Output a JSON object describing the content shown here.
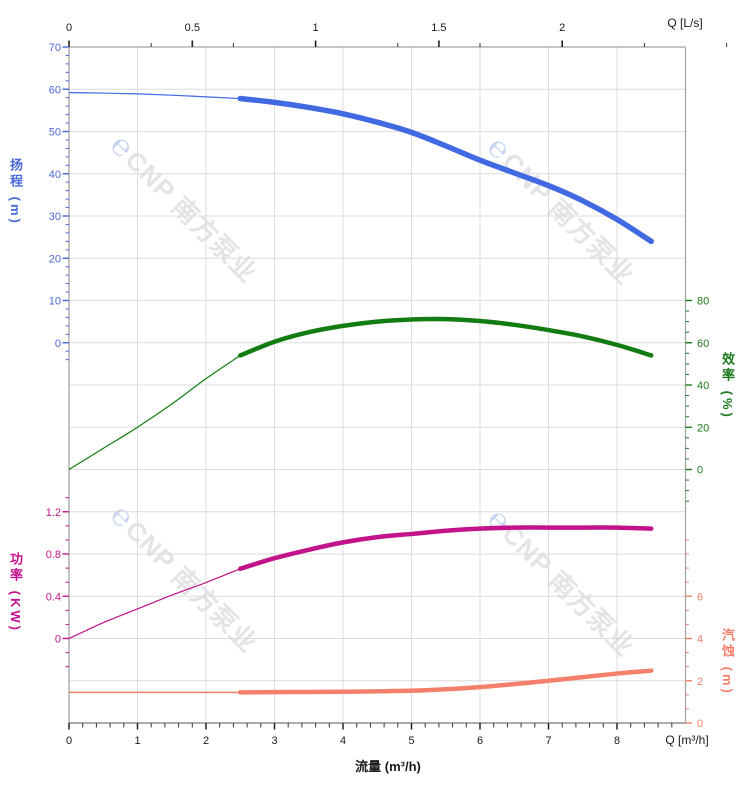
{
  "watermark": {
    "logo": "℮",
    "text": "CNP 南方泵业"
  },
  "chart_data": {
    "type": "line",
    "title": "",
    "x_m3h": [
      0,
      0.5,
      1,
      1.5,
      2,
      2.5,
      3,
      3.5,
      4,
      4.5,
      5,
      5.5,
      6,
      6.5,
      7,
      7.5,
      8,
      8.5
    ],
    "series": [
      {
        "name": "head",
        "label": "扬程 (m)",
        "unit": "m",
        "color": "#4169e1",
        "label_color": "#4a68d9",
        "rated_from": 2.5,
        "values": [
          59.2,
          59.1,
          58.9,
          58.6,
          58.2,
          57.8,
          56.9,
          55.7,
          54.2,
          52.2,
          49.8,
          46.6,
          43.2,
          40.2,
          37.2,
          33.6,
          29.2,
          24.0
        ]
      },
      {
        "name": "efficiency",
        "label": "效率 (%)",
        "unit": "%",
        "color": "#127c12",
        "label_color": "#1b7a1b",
        "rated_from": 2.5,
        "values": [
          0,
          10,
          20,
          31,
          43,
          54,
          60.5,
          65,
          68,
          70,
          71,
          71.2,
          70.3,
          68.5,
          66,
          63,
          59,
          54
        ]
      },
      {
        "name": "power",
        "label": "功率 (KW)",
        "unit": "KW",
        "color": "#c2138a",
        "label_color": "#c4138c",
        "rated_from": 2.5,
        "values": [
          0,
          0.15,
          0.28,
          0.41,
          0.53,
          0.66,
          0.76,
          0.84,
          0.91,
          0.96,
          0.99,
          1.02,
          1.04,
          1.05,
          1.05,
          1.05,
          1.05,
          1.04
        ]
      },
      {
        "name": "npsh",
        "label": "汽蚀 (m)",
        "unit": "m",
        "color": "#f4806b",
        "label_color": "#f4806b",
        "rated_from": 2.5,
        "values": [
          1.45,
          1.45,
          1.45,
          1.45,
          1.45,
          1.45,
          1.46,
          1.47,
          1.48,
          1.5,
          1.53,
          1.6,
          1.7,
          1.84,
          2.0,
          2.17,
          2.34,
          2.48
        ]
      }
    ],
    "axes": {
      "x_bottom": {
        "title": "流量 (m³/h)",
        "unit": "Q [m³/h]",
        "ticks": [
          0,
          1,
          2,
          3,
          4,
          5,
          6,
          7,
          8
        ],
        "range": [
          0,
          9
        ]
      },
      "x_top": {
        "unit": "Q [L/s]",
        "ticks": [
          0,
          0.5,
          1,
          1.5,
          2
        ],
        "range": [
          0,
          2.5
        ]
      },
      "y_head": {
        "ticks": [
          70,
          60,
          50,
          40,
          30,
          20,
          10,
          0
        ],
        "range_visible": [
          0,
          70
        ]
      },
      "y_eff": {
        "ticks": [
          80,
          60,
          40,
          20,
          0
        ],
        "range_visible": [
          0,
          80
        ]
      },
      "y_power": {
        "ticks": [
          1.2,
          0.8,
          0.4,
          0
        ],
        "range_visible": [
          0,
          1.2
        ]
      },
      "y_npsh": {
        "ticks": [
          6,
          4,
          2,
          0
        ],
        "range_visible": [
          0,
          6
        ]
      }
    },
    "style_colors": {
      "grid": "#dcdcdc",
      "spine": "#a5a5a5",
      "bottom_axis": "#8f8f8f",
      "axis_text": "#1a1a1a"
    }
  }
}
